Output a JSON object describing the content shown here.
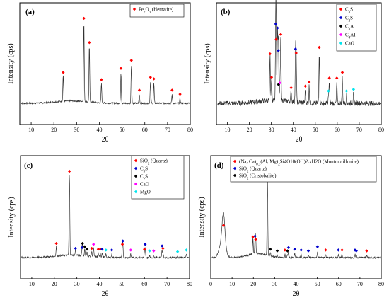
{
  "chart_data": [
    {
      "type": "line",
      "panel_label": "(a)",
      "xlabel": "2θ",
      "ylabel": "Intensity (cps)",
      "xlim": [
        5,
        80
      ],
      "xticks": [
        10,
        20,
        30,
        40,
        50,
        60,
        70,
        80
      ],
      "yticks_shown": false,
      "legend_position": "top-right",
      "series": [
        {
          "name": "Fe2O3 (Hematite)",
          "label_base": "Fe",
          "label_sub1": "2",
          "label_mid": "O",
          "label_sub2": "3",
          "label_tail": " (Hematite)",
          "color": "#ff0000",
          "shape": "diamond",
          "peaks": [
            {
              "x": 24.1,
              "h": 0.33
            },
            {
              "x": 33.2,
              "h": 1.0
            },
            {
              "x": 35.6,
              "h": 0.7
            },
            {
              "x": 40.9,
              "h": 0.24
            },
            {
              "x": 49.5,
              "h": 0.38
            },
            {
              "x": 54.1,
              "h": 0.48
            },
            {
              "x": 57.6,
              "h": 0.11
            },
            {
              "x": 62.5,
              "h": 0.27
            },
            {
              "x": 64.0,
              "h": 0.25
            },
            {
              "x": 72.0,
              "h": 0.11
            },
            {
              "x": 75.5,
              "h": 0.06
            }
          ]
        }
      ]
    },
    {
      "type": "line",
      "panel_label": "(b)",
      "xlabel": "2θ",
      "ylabel": "Intensity (cps)",
      "xlim": [
        5,
        80
      ],
      "xticks": [
        10,
        20,
        30,
        40,
        50,
        60,
        70,
        80
      ],
      "yticks_shown": false,
      "legend_position": "top-right",
      "series": [
        {
          "name": "C3S",
          "label_base": "C",
          "label_sub1": "3",
          "label_mid": "S",
          "label_sub2": "",
          "label_tail": "",
          "color": "#ff0000",
          "shape": "diamond",
          "peaks": [
            {
              "x": 29.4,
              "h": 0.56
            },
            {
              "x": 30.1,
              "h": 0.27
            },
            {
              "x": 32.2,
              "h": 0.74
            },
            {
              "x": 34.3,
              "h": 0.8
            },
            {
              "x": 39.0,
              "h": 0.14
            },
            {
              "x": 41.3,
              "h": 0.57
            },
            {
              "x": 45.5,
              "h": 0.16
            },
            {
              "x": 47.2,
              "h": 0.21
            },
            {
              "x": 51.8,
              "h": 0.64
            },
            {
              "x": 56.4,
              "h": 0.26
            },
            {
              "x": 59.8,
              "h": 0.26
            },
            {
              "x": 62.3,
              "h": 0.33
            }
          ]
        },
        {
          "name": "C2S",
          "label_base": "C",
          "label_sub1": "2",
          "label_mid": "S",
          "label_sub2": "",
          "label_tail": "",
          "color": "#0000cc",
          "shape": "diamond",
          "peaks": [
            {
              "x": 32.0,
              "h": 0.93
            },
            {
              "x": 32.8,
              "h": 0.88
            },
            {
              "x": 33.2,
              "h": 0.6
            },
            {
              "x": 41.0,
              "h": 0.62
            }
          ]
        },
        {
          "name": "C3A",
          "label_base": "C",
          "label_sub1": "3",
          "label_mid": "A",
          "label_sub2": "",
          "label_tail": "",
          "color": "#000000",
          "shape": "diamond",
          "peaks": [
            {
              "x": 33.2,
              "h": 0.18
            }
          ]
        },
        {
          "name": "C4AF",
          "label_base": "C",
          "label_sub1": "4",
          "label_mid": "AF",
          "label_sub2": "",
          "label_tail": "",
          "color": "#ff00ff",
          "shape": "diamond",
          "peaks": [
            {
              "x": 33.9,
              "h": 0.2
            }
          ]
        },
        {
          "name": "CaO",
          "label_base": "CaO",
          "label_sub1": "",
          "label_mid": "",
          "label_sub2": "",
          "label_tail": "",
          "color": "#00e5ee",
          "shape": "diamond",
          "peaks": [
            {
              "x": 56.0,
              "h": 0.1
            },
            {
              "x": 64.2,
              "h": 0.1
            },
            {
              "x": 67.4,
              "h": 0.12
            }
          ]
        }
      ]
    },
    {
      "type": "line",
      "panel_label": "(c)",
      "xlabel": "2θ",
      "ylabel": "Intensity (cps)",
      "xlim": [
        5,
        80
      ],
      "xticks": [
        10,
        20,
        30,
        40,
        50,
        60,
        70,
        80
      ],
      "yticks_shown": false,
      "legend_position": "top-right",
      "series": [
        {
          "name": "SiO2 (Quartz)",
          "label_base": "SiO",
          "label_sub1": "2",
          "label_mid": "",
          "label_sub2": "",
          "label_tail": " (Quartz)",
          "color": "#ff0000",
          "shape": "diamond",
          "peaks": [
            {
              "x": 20.9,
              "h": 0.12
            },
            {
              "x": 26.7,
              "h": 1.0
            },
            {
              "x": 36.6,
              "h": 0.06
            },
            {
              "x": 39.5,
              "h": 0.05
            },
            {
              "x": 40.4,
              "h": 0.05
            },
            {
              "x": 50.2,
              "h": 0.11
            },
            {
              "x": 60.0,
              "h": 0.05
            },
            {
              "x": 68.2,
              "h": 0.06
            }
          ]
        },
        {
          "name": "C3S",
          "label_base": "C",
          "label_sub1": "3",
          "label_mid": "S",
          "label_sub2": "",
          "label_tail": "",
          "color": "#0000cc",
          "shape": "diamond",
          "peaks": [
            {
              "x": 29.4,
              "h": 0.06
            },
            {
              "x": 32.3,
              "h": 0.07
            },
            {
              "x": 41.2,
              "h": 0.05
            },
            {
              "x": 45.5,
              "h": 0.04
            },
            {
              "x": 50.4,
              "h": 0.15
            },
            {
              "x": 60.3,
              "h": 0.11
            },
            {
              "x": 67.8,
              "h": 0.09
            }
          ]
        },
        {
          "name": "C2S",
          "label_base": "C",
          "label_sub1": "2",
          "label_mid": "S",
          "label_sub2": "",
          "label_tail": "",
          "color": "#000000",
          "shape": "diamond",
          "peaks": [
            {
              "x": 32.5,
              "h": 0.12
            },
            {
              "x": 33.5,
              "h": 0.08
            },
            {
              "x": 34.5,
              "h": 0.05
            }
          ]
        },
        {
          "name": "CaO",
          "label_base": "CaO",
          "label_sub1": "",
          "label_mid": "",
          "label_sub2": "",
          "label_tail": "",
          "color": "#ff00ff",
          "shape": "diamond",
          "peaks": [
            {
              "x": 37.4,
              "h": 0.11
            },
            {
              "x": 53.9,
              "h": 0.04
            },
            {
              "x": 64.1,
              "h": 0.03
            }
          ]
        },
        {
          "name": "MgO",
          "label_base": "MgO",
          "label_sub1": "",
          "label_mid": "",
          "label_sub2": "",
          "label_tail": "",
          "color": "#00e5ee",
          "shape": "diamond",
          "peaks": [
            {
              "x": 42.9,
              "h": 0.04
            },
            {
              "x": 62.3,
              "h": 0.03
            },
            {
              "x": 74.7,
              "h": 0.02
            },
            {
              "x": 78.6,
              "h": 0.04
            }
          ]
        }
      ]
    },
    {
      "type": "line",
      "panel_label": "(d)",
      "xlabel": "2θ",
      "ylabel": "Intensity (cps)",
      "xlim": [
        0,
        80
      ],
      "xticks": [
        0,
        10,
        20,
        30,
        40,
        50,
        60,
        70,
        80
      ],
      "yticks_shown": false,
      "legend_position": "top-right",
      "series": [
        {
          "name": "(Na, Ca)0.3(Al, Mg)2Si4O10(OH)2.xH2O (Montmorillonite)",
          "label_base": "(Na, Ca)",
          "label_sub1": "0.3",
          "label_mid": "(Al, Mg)",
          "label_sub2": "2",
          "label_tail": "Si4O10(OH)2.xH2O (Montmorillonite)",
          "color": "#ff0000",
          "shape": "diamond",
          "peaks": [
            {
              "x": 6.0,
              "h": 0.34
            },
            {
              "x": 19.8,
              "h": 0.2
            },
            {
              "x": 21.1,
              "h": 0.17
            },
            {
              "x": 34.8,
              "h": 0.04
            },
            {
              "x": 53.9,
              "h": 0.04
            },
            {
              "x": 61.6,
              "h": 0.04
            },
            {
              "x": 73.2,
              "h": 0.03
            }
          ]
        },
        {
          "name": "SiO2 (Quartz)",
          "label_base": "SiO",
          "label_sub1": "2",
          "label_mid": "",
          "label_sub2": "",
          "label_tail": " (Quartz)",
          "color": "#0000cc",
          "shape": "diamond",
          "peaks": [
            {
              "x": 20.8,
              "h": 0.21
            },
            {
              "x": 26.6,
              "h": 1.0
            },
            {
              "x": 36.5,
              "h": 0.07
            },
            {
              "x": 39.4,
              "h": 0.05
            },
            {
              "x": 42.4,
              "h": 0.04
            },
            {
              "x": 45.8,
              "h": 0.03
            },
            {
              "x": 50.1,
              "h": 0.08
            },
            {
              "x": 59.9,
              "h": 0.04
            },
            {
              "x": 67.7,
              "h": 0.04
            },
            {
              "x": 68.3,
              "h": 0.03
            }
          ]
        },
        {
          "name": "SiO2 (Cristobalite)",
          "label_base": "SiO",
          "label_sub1": "2",
          "label_mid": "",
          "label_sub2": "",
          "label_tail": " (Cristobalite)",
          "color": "#000000",
          "shape": "diamond",
          "peaks": [
            {
              "x": 28.0,
              "h": 0.05
            },
            {
              "x": 31.2,
              "h": 0.03
            },
            {
              "x": 36.0,
              "h": 0.03
            }
          ]
        }
      ]
    }
  ]
}
